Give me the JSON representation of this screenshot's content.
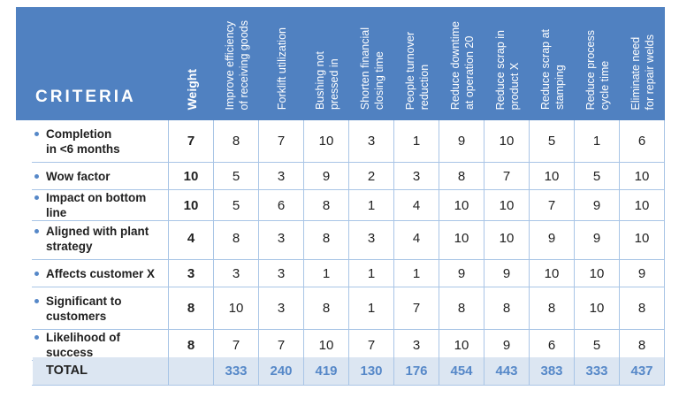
{
  "table": {
    "criteria_header": "CRITERIA",
    "weight_header": "Weight",
    "columns": [
      "Improve efficiency\nof receiving goods",
      "Forklift utilization",
      "Bushing not\npressed in",
      "Shorten financial\nclosing time",
      "People turnover\nreduction",
      "Reduce downtime\nat operation 20",
      "Reduce scrap in\nproduct X",
      "Reduce scrap at\nstamping",
      "Reduce process\ncycle time",
      "Eliminate need\nfor repair welds"
    ],
    "rows": [
      {
        "label": "Completion\nin <6 months",
        "weight": 7,
        "scores": [
          8,
          7,
          10,
          3,
          1,
          9,
          10,
          5,
          1,
          6
        ]
      },
      {
        "label": "Wow factor",
        "weight": 10,
        "scores": [
          5,
          3,
          9,
          2,
          3,
          8,
          7,
          10,
          5,
          10
        ]
      },
      {
        "label": "Impact on bottom line",
        "weight": 10,
        "scores": [
          5,
          6,
          8,
          1,
          4,
          10,
          10,
          7,
          9,
          10
        ]
      },
      {
        "label": "Aligned with plant\nstrategy",
        "weight": 4,
        "scores": [
          8,
          3,
          8,
          3,
          4,
          10,
          10,
          9,
          9,
          10
        ]
      },
      {
        "label": "Affects customer X",
        "weight": 3,
        "scores": [
          3,
          3,
          1,
          1,
          1,
          9,
          9,
          10,
          10,
          9
        ]
      },
      {
        "label": "Significant to\ncustomers",
        "weight": 8,
        "scores": [
          10,
          3,
          8,
          1,
          7,
          8,
          8,
          8,
          10,
          8
        ]
      },
      {
        "label": "Likelihood of success",
        "weight": 8,
        "scores": [
          7,
          7,
          10,
          7,
          3,
          10,
          9,
          6,
          5,
          8
        ]
      }
    ],
    "total": {
      "label": "TOTAL",
      "values": [
        333,
        240,
        419,
        130,
        176,
        454,
        443,
        383,
        333,
        437
      ]
    }
  },
  "colors": {
    "header_bg": "#5081c1",
    "header_text": "#ffffff",
    "grid": "#a9c5e6",
    "total_bg": "#dce6f2",
    "accent": "#5688c8",
    "body_text": "#212121"
  }
}
